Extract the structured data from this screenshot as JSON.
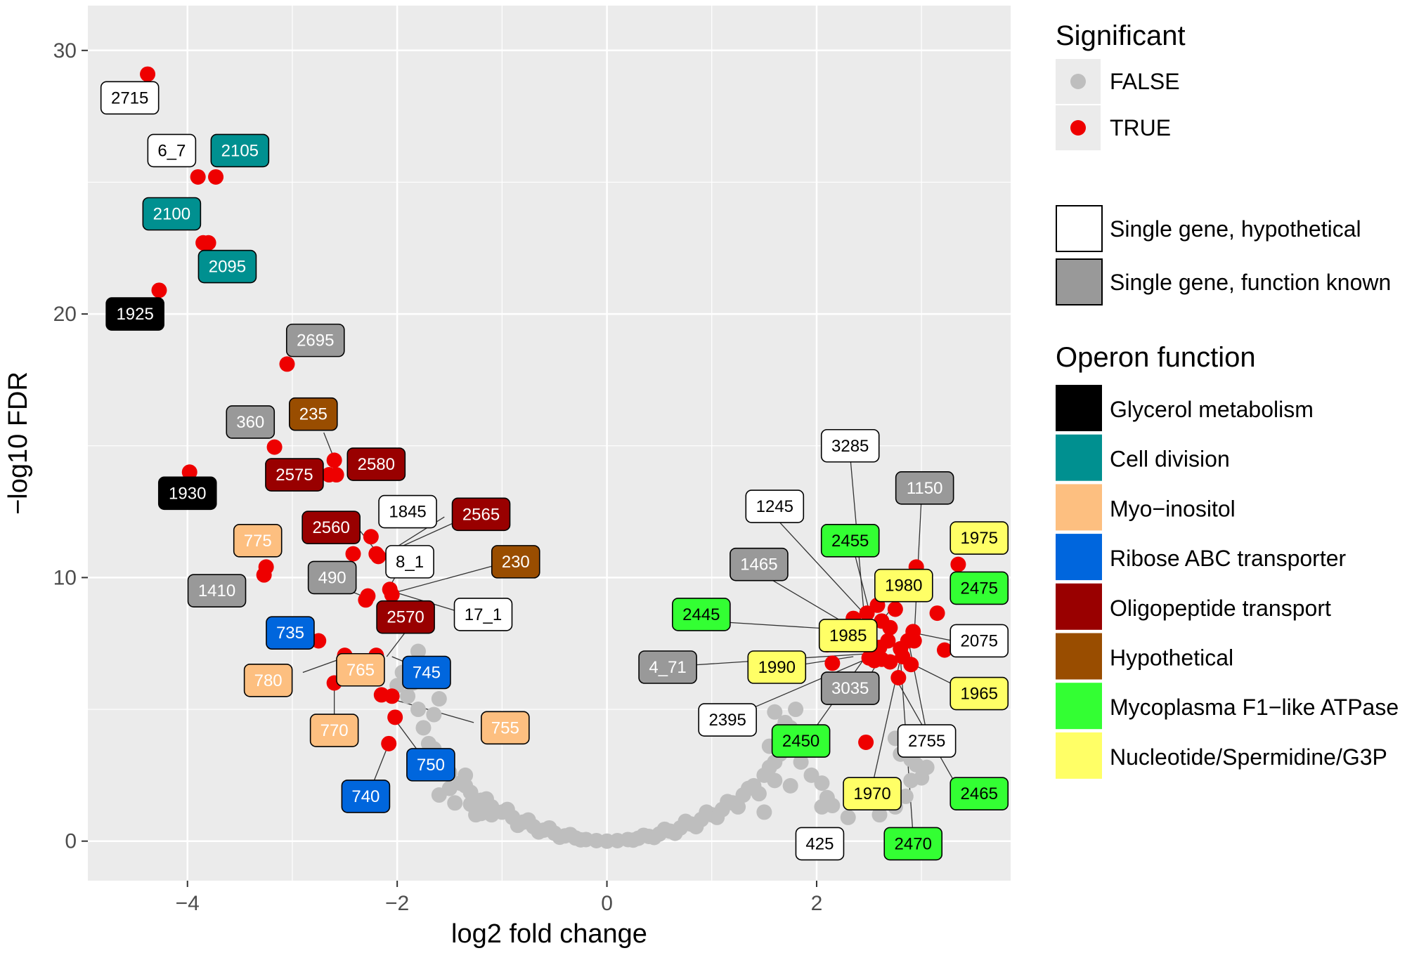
{
  "chart_data": {
    "type": "scatter",
    "xlabel": "log2 fold change",
    "ylabel": "−log10 FDR",
    "xlim": [
      -4.95,
      3.85
    ],
    "ylim": [
      -1.5,
      31.7
    ],
    "xticks": [
      -4,
      -2,
      0,
      2
    ],
    "xtick_labels": [
      "−4",
      "−2",
      "0",
      "2"
    ],
    "yticks": [
      0,
      10,
      20,
      30
    ],
    "ytick_labels": [
      "0",
      "10",
      "20",
      "30"
    ],
    "grid": true,
    "colors": {
      "panel": "#ebebeb",
      "grid": "#ffffff",
      "nonsig": "#bebebe",
      "sig": "#ee0000"
    },
    "nonsignificant_points": [
      [
        0,
        0
      ],
      [
        -0.1,
        0.02
      ],
      [
        0.1,
        0.02
      ],
      [
        -0.2,
        0.06
      ],
      [
        0.2,
        0.06
      ],
      [
        -0.3,
        0.12
      ],
      [
        0.3,
        0.11
      ],
      [
        -0.4,
        0.2
      ],
      [
        0.4,
        0.18
      ],
      [
        -0.5,
        0.3
      ],
      [
        0.5,
        0.27
      ],
      [
        -0.6,
        0.42
      ],
      [
        0.6,
        0.38
      ],
      [
        -0.7,
        0.55
      ],
      [
        0.7,
        0.5
      ],
      [
        -0.8,
        0.72
      ],
      [
        0.8,
        0.65
      ],
      [
        -0.9,
        0.9
      ],
      [
        0.9,
        0.82
      ],
      [
        -1.0,
        1.1
      ],
      [
        1.0,
        1.0
      ],
      [
        -1.1,
        1.3
      ],
      [
        1.1,
        1.2
      ],
      [
        -1.2,
        1.55
      ],
      [
        1.2,
        1.45
      ],
      [
        -1.3,
        1.85
      ],
      [
        1.3,
        1.75
      ],
      [
        -1.4,
        2.2
      ],
      [
        1.4,
        2.1
      ],
      [
        -1.5,
        2.6
      ],
      [
        1.5,
        2.5
      ],
      [
        -1.6,
        3.1
      ],
      [
        1.6,
        3.0
      ],
      [
        -1.7,
        3.7
      ],
      [
        1.7,
        3.6
      ],
      [
        -1.75,
        4.3
      ],
      [
        1.75,
        4.3
      ],
      [
        -1.8,
        5.0
      ],
      [
        1.8,
        5.0
      ],
      [
        -0.35,
        0.25
      ],
      [
        0.35,
        0.22
      ],
      [
        -0.55,
        0.5
      ],
      [
        0.55,
        0.45
      ],
      [
        -0.75,
        0.8
      ],
      [
        0.75,
        0.75
      ],
      [
        -0.95,
        1.2
      ],
      [
        0.95,
        1.1
      ],
      [
        -1.15,
        1.6
      ],
      [
        1.15,
        1.5
      ],
      [
        -1.35,
        2.1
      ],
      [
        1.35,
        2.0
      ],
      [
        -1.55,
        2.9
      ],
      [
        1.55,
        2.8
      ],
      [
        -1.65,
        3.5
      ],
      [
        1.65,
        3.3
      ],
      [
        -1.7,
        2.6
      ],
      [
        1.6,
        2.3
      ],
      [
        -1.5,
        2.0
      ],
      [
        1.45,
        1.8
      ],
      [
        -1.3,
        1.4
      ],
      [
        1.25,
        1.3
      ],
      [
        -1.1,
        1.0
      ],
      [
        1.05,
        0.9
      ],
      [
        -0.85,
        0.6
      ],
      [
        0.85,
        0.55
      ],
      [
        -0.65,
        0.35
      ],
      [
        0.65,
        0.3
      ],
      [
        -0.45,
        0.15
      ],
      [
        0.45,
        0.14
      ],
      [
        -0.25,
        0.05
      ],
      [
        0.25,
        0.04
      ],
      [
        -1.9,
        5.5
      ],
      [
        -1.85,
        6.0
      ],
      [
        -1.95,
        6.4
      ],
      [
        -1.8,
        7.2
      ],
      [
        -1.6,
        5.4
      ],
      [
        -1.65,
        4.8
      ],
      [
        -2.0,
        5.9
      ],
      [
        -1.25,
        1.0
      ],
      [
        -1.2,
        1.05
      ],
      [
        -1.15,
        1.25
      ],
      [
        -1.45,
        1.45
      ],
      [
        -1.6,
        1.75
      ],
      [
        -1.35,
        2.5
      ],
      [
        1.6,
        4.9
      ],
      [
        1.7,
        4.5
      ],
      [
        1.85,
        3.4
      ],
      [
        1.85,
        3.0
      ],
      [
        1.95,
        2.5
      ],
      [
        1.65,
        4.2
      ],
      [
        1.55,
        3.6
      ],
      [
        1.75,
        2.1
      ],
      [
        2.05,
        1.3
      ],
      [
        2.1,
        1.65
      ],
      [
        2.15,
        1.35
      ],
      [
        1.5,
        1.1
      ],
      [
        2.3,
        0.9
      ],
      [
        2.05,
        2.2
      ],
      [
        2.75,
        3.9
      ],
      [
        2.8,
        3.3
      ],
      [
        2.9,
        2.3
      ],
      [
        2.95,
        2.9
      ],
      [
        3.0,
        2.4
      ],
      [
        2.65,
        2.1
      ],
      [
        2.85,
        1.7
      ],
      [
        2.75,
        1.3
      ],
      [
        2.6,
        1.0
      ],
      [
        2.95,
        3.6
      ],
      [
        3.05,
        2.8
      ],
      [
        2.9,
        3.1
      ]
    ],
    "significant_points": [
      [
        -4.38,
        29.1
      ],
      [
        -3.9,
        25.2
      ],
      [
        -3.73,
        25.2
      ],
      [
        -3.85,
        22.7
      ],
      [
        -3.8,
        22.7
      ],
      [
        -4.27,
        20.9
      ],
      [
        -3.05,
        18.1
      ],
      [
        -3.98,
        14.0
      ],
      [
        -3.17,
        14.95
      ],
      [
        -2.6,
        14.45
      ],
      [
        -2.65,
        13.9
      ],
      [
        -2.58,
        13.9
      ],
      [
        -3.25,
        10.4
      ],
      [
        -3.27,
        10.1
      ],
      [
        -2.25,
        11.55
      ],
      [
        -2.42,
        10.9
      ],
      [
        -2.2,
        10.9
      ],
      [
        -2.18,
        10.8
      ],
      [
        -2.07,
        9.55
      ],
      [
        -2.05,
        9.35
      ],
      [
        -2.28,
        9.3
      ],
      [
        -2.3,
        9.15
      ],
      [
        -2.75,
        7.6
      ],
      [
        -2.5,
        7.05
      ],
      [
        -2.2,
        7.05
      ],
      [
        -2.6,
        6.0
      ],
      [
        -2.15,
        5.55
      ],
      [
        -2.05,
        5.5
      ],
      [
        -2.02,
        4.7
      ],
      [
        -2.08,
        3.7
      ],
      [
        2.47,
        3.75
      ],
      [
        2.1,
        7.45
      ],
      [
        2.15,
        6.75
      ],
      [
        2.35,
        8.45
      ],
      [
        2.48,
        8.65
      ],
      [
        2.58,
        8.95
      ],
      [
        2.45,
        7.7
      ],
      [
        2.6,
        7.35
      ],
      [
        2.5,
        6.95
      ],
      [
        2.56,
        7.0
      ],
      [
        2.62,
        6.9
      ],
      [
        2.55,
        6.85
      ],
      [
        2.68,
        7.6
      ],
      [
        2.62,
        8.35
      ],
      [
        2.7,
        8.1
      ],
      [
        2.78,
        6.2
      ],
      [
        2.87,
        7.6
      ],
      [
        2.8,
        7.3
      ],
      [
        2.82,
        7.0
      ],
      [
        2.92,
        7.95
      ],
      [
        2.93,
        7.6
      ],
      [
        2.95,
        10.4
      ],
      [
        3.15,
        8.65
      ],
      [
        3.22,
        7.25
      ],
      [
        3.35,
        10.5
      ],
      [
        2.9,
        6.7
      ],
      [
        2.7,
        6.8
      ],
      [
        2.75,
        8.8
      ]
    ],
    "labels": [
      {
        "text": "2715",
        "cat": "hyp",
        "x": -4.55,
        "y": 28.2
      },
      {
        "text": "6_7",
        "cat": "hyp",
        "x": -4.15,
        "y": 26.2
      },
      {
        "text": "2105",
        "cat": "cell",
        "x": -3.5,
        "y": 26.2
      },
      {
        "text": "2100",
        "cat": "cell",
        "x": -4.15,
        "y": 23.8
      },
      {
        "text": "2095",
        "cat": "cell",
        "x": -3.62,
        "y": 21.8
      },
      {
        "text": "1925",
        "cat": "glyc",
        "x": -4.5,
        "y": 20.0
      },
      {
        "text": "2695",
        "cat": "known",
        "x": -2.78,
        "y": 19.0
      },
      {
        "text": "360",
        "cat": "known",
        "x": -3.4,
        "y": 15.9
      },
      {
        "text": "235",
        "cat": "hypo_op",
        "x": -2.8,
        "y": 16.2
      },
      {
        "text": "2580",
        "cat": "oligo",
        "x": -2.2,
        "y": 14.3
      },
      {
        "text": "2575",
        "cat": "oligo",
        "x": -2.98,
        "y": 13.9
      },
      {
        "text": "1930",
        "cat": "glyc",
        "x": -4.0,
        "y": 13.2
      },
      {
        "text": "1845",
        "cat": "hyp",
        "x": -1.9,
        "y": 12.5
      },
      {
        "text": "2565",
        "cat": "oligo",
        "x": -1.2,
        "y": 12.4
      },
      {
        "text": "2560",
        "cat": "oligo",
        "x": -2.63,
        "y": 11.9
      },
      {
        "text": "775",
        "cat": "myo",
        "x": -3.33,
        "y": 11.4
      },
      {
        "text": "8_1",
        "cat": "hyp",
        "x": -1.88,
        "y": 10.6
      },
      {
        "text": "230",
        "cat": "hypo_op",
        "x": -0.87,
        "y": 10.6
      },
      {
        "text": "490",
        "cat": "known",
        "x": -2.62,
        "y": 10.0
      },
      {
        "text": "1410",
        "cat": "known",
        "x": -3.72,
        "y": 9.5
      },
      {
        "text": "17_1",
        "cat": "hyp",
        "x": -1.18,
        "y": 8.6
      },
      {
        "text": "2570",
        "cat": "oligo",
        "x": -1.92,
        "y": 8.5
      },
      {
        "text": "735",
        "cat": "ribose",
        "x": -3.02,
        "y": 7.9
      },
      {
        "text": "745",
        "cat": "ribose",
        "x": -1.72,
        "y": 6.4
      },
      {
        "text": "765",
        "cat": "myo",
        "x": -2.35,
        "y": 6.5
      },
      {
        "text": "780",
        "cat": "myo",
        "x": -3.23,
        "y": 6.1
      },
      {
        "text": "770",
        "cat": "myo",
        "x": -2.6,
        "y": 4.2
      },
      {
        "text": "755",
        "cat": "myo",
        "x": -0.97,
        "y": 4.3
      },
      {
        "text": "750",
        "cat": "ribose",
        "x": -1.68,
        "y": 2.9
      },
      {
        "text": "740",
        "cat": "ribose",
        "x": -2.3,
        "y": 1.7
      },
      {
        "text": "3285",
        "cat": "hyp",
        "x": 2.32,
        "y": 15.0
      },
      {
        "text": "1150",
        "cat": "known",
        "x": 3.03,
        "y": 13.4
      },
      {
        "text": "1245",
        "cat": "hyp",
        "x": 1.6,
        "y": 12.7
      },
      {
        "text": "2455",
        "cat": "atp",
        "x": 2.32,
        "y": 11.4
      },
      {
        "text": "1975",
        "cat": "nuc",
        "x": 3.55,
        "y": 11.5
      },
      {
        "text": "1465",
        "cat": "known",
        "x": 1.45,
        "y": 10.5
      },
      {
        "text": "1980",
        "cat": "nuc",
        "x": 2.83,
        "y": 9.7
      },
      {
        "text": "2475",
        "cat": "atp",
        "x": 3.55,
        "y": 9.6
      },
      {
        "text": "2445",
        "cat": "atp",
        "x": 0.9,
        "y": 8.6
      },
      {
        "text": "1985",
        "cat": "nuc",
        "x": 2.3,
        "y": 7.8
      },
      {
        "text": "2075",
        "cat": "hyp",
        "x": 3.55,
        "y": 7.6
      },
      {
        "text": "4_71",
        "cat": "known",
        "x": 0.58,
        "y": 6.6
      },
      {
        "text": "1990",
        "cat": "nuc",
        "x": 1.62,
        "y": 6.6
      },
      {
        "text": "3035",
        "cat": "known",
        "x": 2.32,
        "y": 5.8
      },
      {
        "text": "1965",
        "cat": "nuc",
        "x": 3.55,
        "y": 5.6
      },
      {
        "text": "2395",
        "cat": "hyp",
        "x": 1.15,
        "y": 4.6
      },
      {
        "text": "2450",
        "cat": "atp",
        "x": 1.85,
        "y": 3.8
      },
      {
        "text": "2755",
        "cat": "hyp",
        "x": 3.05,
        "y": 3.8
      },
      {
        "text": "1970",
        "cat": "nuc",
        "x": 2.53,
        "y": 1.8
      },
      {
        "text": "2465",
        "cat": "atp",
        "x": 3.55,
        "y": 1.8
      },
      {
        "text": "425",
        "cat": "hyp",
        "x": 2.03,
        "y": -0.1
      },
      {
        "text": "2470",
        "cat": "atp",
        "x": 2.92,
        "y": -0.1
      }
    ],
    "leader_lines": [
      [
        -2.7,
        15.5,
        -2.6,
        14.5
      ],
      [
        -2.4,
        12.0,
        -2.2,
        11.0
      ],
      [
        -1.55,
        12.3,
        -2.15,
        10.8
      ],
      [
        -1.28,
        12.4,
        -2.17,
        10.8
      ],
      [
        -1.95,
        10.5,
        -2.08,
        9.6
      ],
      [
        -0.94,
        10.6,
        -2.05,
        9.4
      ],
      [
        -1.45,
        8.75,
        -2.07,
        9.5
      ],
      [
        -2.58,
        9.7,
        -2.3,
        9.25
      ],
      [
        -1.86,
        8.25,
        -2.1,
        7.0
      ],
      [
        -1.9,
        6.75,
        -2.05,
        7.0
      ],
      [
        -2.9,
        6.4,
        -2.48,
        7.0
      ],
      [
        -2.6,
        4.45,
        -2.6,
        5.9
      ],
      [
        -1.27,
        4.5,
        -2.15,
        5.5
      ],
      [
        -1.75,
        3.15,
        -2.02,
        4.6
      ],
      [
        -2.25,
        2.0,
        -2.08,
        3.7
      ],
      [
        2.32,
        14.6,
        2.45,
        8.7
      ],
      [
        3.0,
        13.05,
        2.93,
        7.7
      ],
      [
        1.6,
        12.3,
        2.46,
        8.6
      ],
      [
        2.35,
        11.1,
        2.5,
        8.75
      ],
      [
        1.45,
        10.2,
        2.47,
        7.8
      ],
      [
        0.95,
        8.35,
        2.35,
        8.0
      ],
      [
        2.83,
        9.4,
        2.62,
        8.35
      ],
      [
        2.3,
        7.5,
        2.48,
        7.6
      ],
      [
        3.3,
        7.6,
        2.93,
        7.9
      ],
      [
        0.7,
        6.65,
        2.45,
        7.1
      ],
      [
        1.7,
        6.6,
        2.35,
        7.0
      ],
      [
        2.45,
        5.9,
        2.6,
        6.9
      ],
      [
        3.35,
        5.85,
        2.82,
        6.9
      ],
      [
        1.3,
        4.9,
        2.5,
        6.95
      ],
      [
        1.95,
        4.1,
        2.45,
        6.9
      ],
      [
        3.05,
        4.1,
        2.88,
        7.5
      ],
      [
        2.53,
        2.1,
        2.82,
        7.3
      ],
      [
        3.35,
        2.0,
        2.75,
        6.2
      ],
      [
        2.92,
        0.2,
        2.8,
        6.9
      ]
    ],
    "legend": {
      "significant": {
        "title": "Significant",
        "items": [
          {
            "label": "FALSE",
            "color": "#bebebe"
          },
          {
            "label": "TRUE",
            "color": "#ee0000"
          }
        ]
      },
      "single_gene": {
        "items": [
          {
            "label": "Single gene, hypothetical",
            "color": "#ffffff"
          },
          {
            "label": "Single gene, function known",
            "color": "#999999"
          }
        ]
      },
      "operon": {
        "title": "Operon function",
        "items": [
          {
            "label": "Glycerol metabolism",
            "color": "#000000"
          },
          {
            "label": "Cell division",
            "color": "#009090"
          },
          {
            "label": "Myo−inositol",
            "color": "#fdbf80"
          },
          {
            "label": "Ribose ABC transporter",
            "color": "#0066dd"
          },
          {
            "label": "Oligopeptide transport",
            "color": "#990000"
          },
          {
            "label": "Hypothetical",
            "color": "#994d00"
          },
          {
            "label": "Mycoplasma F1−like ATPase",
            "color": "#33ff33"
          },
          {
            "label": "Nucleotide/Spermidine/G3P",
            "color": "#ffff66"
          }
        ]
      }
    },
    "label_fill": {
      "hyp": "#ffffff",
      "known": "#999999",
      "glyc": "#000000",
      "cell": "#009090",
      "myo": "#fdbf80",
      "ribose": "#0066dd",
      "oligo": "#990000",
      "hypo_op": "#994d00",
      "atp": "#33ff33",
      "nuc": "#ffff66"
    },
    "label_text_color": {
      "hyp": "#000000",
      "known": "#ffffff",
      "glyc": "#ffffff",
      "cell": "#ffffff",
      "myo": "#ffffff",
      "ribose": "#ffffff",
      "oligo": "#ffffff",
      "hypo_op": "#ffffff",
      "atp": "#000000",
      "nuc": "#000000"
    }
  }
}
